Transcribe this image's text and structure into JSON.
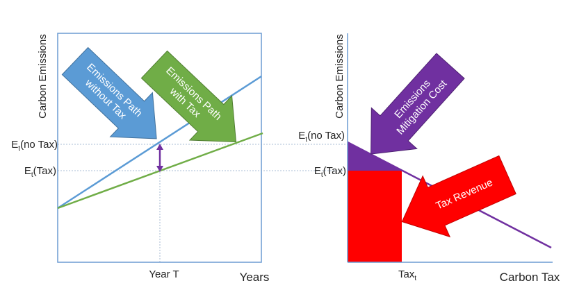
{
  "left_panel": {
    "y_axis_label": "Carbon Emissions",
    "x_axis_label": "Years",
    "x_marker_label": "Year T",
    "level_labels": [
      {
        "symbol": "E",
        "subscript": "t",
        "suffix": "(no Tax)"
      },
      {
        "symbol": "E",
        "subscript": "t",
        "suffix": "(Tax)"
      }
    ],
    "arrows": [
      {
        "lines": [
          "Emissions Path",
          "without Tax"
        ]
      },
      {
        "lines": [
          "Emissions Path",
          "with Tax"
        ]
      }
    ]
  },
  "right_panel": {
    "y_axis_label": "Carbon Emissions",
    "x_axis_label": "Carbon Tax",
    "x_marker_label": {
      "symbol": "Tax",
      "subscript": "t"
    },
    "level_labels": [
      {
        "symbol": "E",
        "subscript": "t",
        "suffix": "(no Tax)"
      },
      {
        "symbol": "E",
        "subscript": "t",
        "suffix": "(Tax)"
      }
    ],
    "arrows": [
      {
        "lines": [
          "Emissions",
          "Mitigation Cost"
        ]
      },
      {
        "lines": [
          "Tax Revenue"
        ]
      }
    ]
  }
}
